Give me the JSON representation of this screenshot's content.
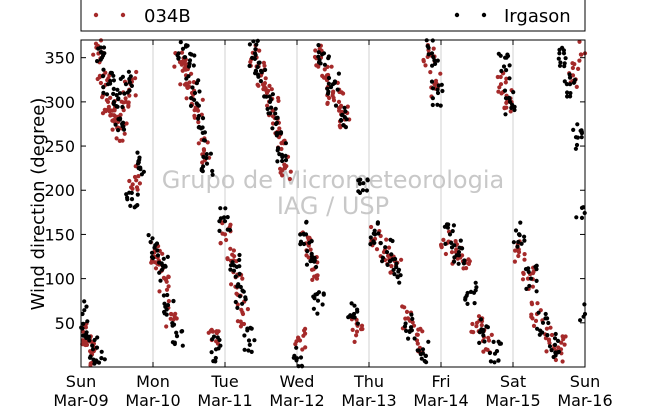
{
  "chart_data": {
    "type": "scatter",
    "title": "",
    "xlabel": "",
    "ylabel": "Wind direction (degree)",
    "xlim": [
      "2014-03-09",
      "2014-03-16"
    ],
    "ylim": [
      0,
      370
    ],
    "yticks": [
      50,
      100,
      150,
      200,
      250,
      300,
      350
    ],
    "x_tick_labels": [
      {
        "day": "Sun",
        "date": "Mar-09"
      },
      {
        "day": "Mon",
        "date": "Mar-10"
      },
      {
        "day": "Tue",
        "date": "Mar-11"
      },
      {
        "day": "Wed",
        "date": "Mar-12"
      },
      {
        "day": "Thu",
        "date": "Mar-13"
      },
      {
        "day": "Fri",
        "date": "Mar-14"
      },
      {
        "day": "Sat",
        "date": "Mar-15"
      },
      {
        "day": "Sun",
        "date": "Mar-16"
      }
    ],
    "grid": "vertical-only",
    "legend_position": "top",
    "watermark": [
      "Grupo de Micrometeorologia",
      "IAG / USP"
    ],
    "series": [
      {
        "name": "034B",
        "color": "#a52a2a",
        "points": [
          [
            "2014-03-09T00:40",
            40
          ],
          [
            "2014-03-09T02:00",
            25
          ],
          [
            "2014-03-09T03:30",
            15
          ],
          [
            "2014-03-09T06:00",
            355
          ],
          [
            "2014-03-09T07:30",
            330
          ],
          [
            "2014-03-09T09:00",
            300
          ],
          [
            "2014-03-09T10:30",
            290
          ],
          [
            "2014-03-09T12:00",
            280
          ],
          [
            "2014-03-09T13:30",
            270
          ],
          [
            "2014-03-09T15:00",
            300
          ],
          [
            "2014-03-09T16:30",
            320
          ],
          [
            "2014-03-09T18:00",
            215
          ],
          [
            "2014-03-10T00:30",
            130
          ],
          [
            "2014-03-10T02:00",
            120
          ],
          [
            "2014-03-10T04:00",
            100
          ],
          [
            "2014-03-10T06:00",
            60
          ],
          [
            "2014-03-10T09:00",
            345
          ],
          [
            "2014-03-10T11:00",
            330
          ],
          [
            "2014-03-10T13:00",
            310
          ],
          [
            "2014-03-10T15:00",
            290
          ],
          [
            "2014-03-10T17:00",
            245
          ],
          [
            "2014-03-10T20:00",
            40
          ],
          [
            "2014-03-11T00:00",
            150
          ],
          [
            "2014-03-11T02:00",
            120
          ],
          [
            "2014-03-11T04:00",
            90
          ],
          [
            "2014-03-11T06:00",
            60
          ],
          [
            "2014-03-11T10:00",
            350
          ],
          [
            "2014-03-11T12:00",
            330
          ],
          [
            "2014-03-11T14:00",
            310
          ],
          [
            "2014-03-11T16:00",
            290
          ],
          [
            "2014-03-11T18:00",
            260
          ],
          [
            "2014-03-11T20:00",
            225
          ],
          [
            "2014-03-12T01:00",
            30
          ],
          [
            "2014-03-12T03:00",
            140
          ],
          [
            "2014-03-12T05:00",
            110
          ],
          [
            "2014-03-12T08:00",
            350
          ],
          [
            "2014-03-12T10:00",
            330
          ],
          [
            "2014-03-12T12:00",
            310
          ],
          [
            "2014-03-12T14:00",
            300
          ],
          [
            "2014-03-12T16:00",
            280
          ],
          [
            "2014-03-12T20:00",
            40
          ],
          [
            "2014-03-13T02:00",
            145
          ],
          [
            "2014-03-13T05:00",
            130
          ],
          [
            "2014-03-13T09:00",
            115
          ],
          [
            "2014-03-13T13:00",
            55
          ],
          [
            "2014-03-13T16:00",
            30
          ],
          [
            "2014-03-13T20:00",
            355
          ],
          [
            "2014-03-13T22:00",
            320
          ],
          [
            "2014-03-14T02:00",
            140
          ],
          [
            "2014-03-14T05:00",
            130
          ],
          [
            "2014-03-14T08:00",
            120
          ],
          [
            "2014-03-14T12:00",
            50
          ],
          [
            "2014-03-14T16:00",
            30
          ],
          [
            "2014-03-14T20:00",
            320
          ],
          [
            "2014-03-14T22:00",
            300
          ],
          [
            "2014-03-15T02:00",
            130
          ],
          [
            "2014-03-15T05:00",
            100
          ],
          [
            "2014-03-15T08:00",
            60
          ],
          [
            "2014-03-15T12:00",
            30
          ],
          [
            "2014-03-15T16:00",
            20
          ],
          [
            "2014-03-15T20:00",
            330
          ],
          [
            "2014-03-16T00:00",
            355
          ]
        ]
      },
      {
        "name": "Irgason",
        "color": "#000000",
        "points": [
          [
            "2014-03-09T00:30",
            60
          ],
          [
            "2014-03-09T02:00",
            35
          ],
          [
            "2014-03-09T04:00",
            20
          ],
          [
            "2014-03-09T06:00",
            5
          ],
          [
            "2014-03-09T07:00",
            350
          ],
          [
            "2014-03-09T09:00",
            320
          ],
          [
            "2014-03-09T11:00",
            300
          ],
          [
            "2014-03-09T13:00",
            280
          ],
          [
            "2014-03-09T15:00",
            320
          ],
          [
            "2014-03-09T17:00",
            190
          ],
          [
            "2014-03-09T19:00",
            230
          ],
          [
            "2014-03-10T00:30",
            135
          ],
          [
            "2014-03-10T03:00",
            110
          ],
          [
            "2014-03-10T05:00",
            70
          ],
          [
            "2014-03-10T08:00",
            35
          ],
          [
            "2014-03-10T10:00",
            360
          ],
          [
            "2014-03-10T12:00",
            340
          ],
          [
            "2014-03-10T14:00",
            310
          ],
          [
            "2014-03-10T16:00",
            270
          ],
          [
            "2014-03-10T18:00",
            230
          ],
          [
            "2014-03-10T21:00",
            20
          ],
          [
            "2014-03-11T00:00",
            165
          ],
          [
            "2014-03-11T03:00",
            115
          ],
          [
            "2014-03-11T05:00",
            80
          ],
          [
            "2014-03-11T08:00",
            30
          ],
          [
            "2014-03-11T10:00",
            355
          ],
          [
            "2014-03-11T12:00",
            335
          ],
          [
            "2014-03-11T15:00",
            300
          ],
          [
            "2014-03-11T17:00",
            275
          ],
          [
            "2014-03-11T19:00",
            240
          ],
          [
            "2014-03-12T00:00",
            10
          ],
          [
            "2014-03-12T03:00",
            150
          ],
          [
            "2014-03-12T05:00",
            120
          ],
          [
            "2014-03-12T07:00",
            75
          ],
          [
            "2014-03-12T09:00",
            355
          ],
          [
            "2014-03-12T12:00",
            320
          ],
          [
            "2014-03-12T15:00",
            285
          ],
          [
            "2014-03-12T19:00",
            60
          ],
          [
            "2014-03-12T22:00",
            200
          ],
          [
            "2014-03-13T02:00",
            150
          ],
          [
            "2014-03-13T06:00",
            130
          ],
          [
            "2014-03-13T10:00",
            110
          ],
          [
            "2014-03-13T14:00",
            45
          ],
          [
            "2014-03-13T18:00",
            20
          ],
          [
            "2014-03-13T21:00",
            355
          ],
          [
            "2014-03-13T23:00",
            310
          ],
          [
            "2014-03-14T03:00",
            150
          ],
          [
            "2014-03-14T06:00",
            130
          ],
          [
            "2014-03-14T10:00",
            85
          ],
          [
            "2014-03-14T14:00",
            40
          ],
          [
            "2014-03-14T18:00",
            15
          ],
          [
            "2014-03-14T21:00",
            340
          ],
          [
            "2014-03-14T23:00",
            300
          ],
          [
            "2014-03-15T02:00",
            150
          ],
          [
            "2014-03-15T06:00",
            100
          ],
          [
            "2014-03-15T10:00",
            50
          ],
          [
            "2014-03-15T14:00",
            25
          ],
          [
            "2014-03-15T17:00",
            355
          ],
          [
            "2014-03-15T19:00",
            320
          ],
          [
            "2014-03-15T21:00",
            260
          ],
          [
            "2014-03-15T23:00",
            180
          ],
          [
            "2014-03-16T00:00",
            60
          ]
        ]
      }
    ]
  }
}
